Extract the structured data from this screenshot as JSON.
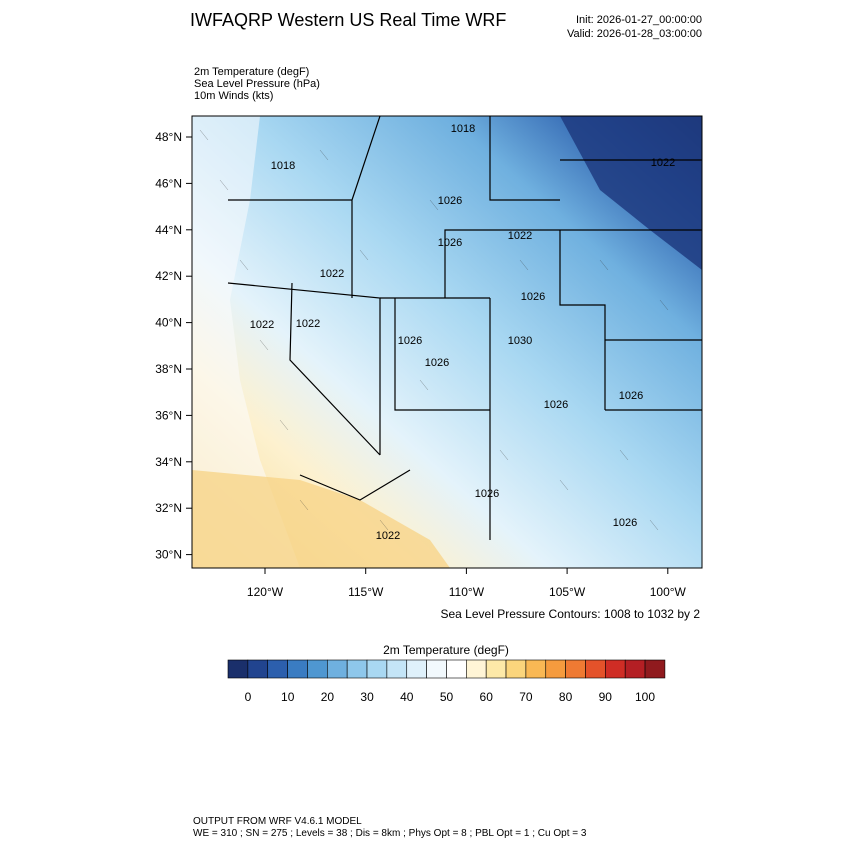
{
  "header": {
    "title": "IWFAQRP Western US Real Time WRF",
    "init": "Init: 2026-01-27_00:00:00",
    "valid": "Valid: 2026-01-28_03:00:00"
  },
  "fields": [
    "2m Temperature   (degF)",
    "Sea Level Pressure   (hPa)",
    "10m Winds   (kts)"
  ],
  "map": {
    "lat_labels": [
      "48°N",
      "46°N",
      "44°N",
      "42°N",
      "40°N",
      "38°N",
      "36°N",
      "34°N",
      "32°N",
      "30°N"
    ],
    "lon_labels": [
      "120°W",
      "115°W",
      "110°W",
      "105°W",
      "100°W"
    ],
    "contour_labels": [
      "1018",
      "1018",
      "1026",
      "1022",
      "1026",
      "1022",
      "1026",
      "1022",
      "1022",
      "1026",
      "1030",
      "1026",
      "1026",
      "1026",
      "1026",
      "1026",
      "1022",
      "1022"
    ],
    "contour_note": "Sea Level Pressure Contours: 1008 to 1032 by 2"
  },
  "colorbar": {
    "title": "2m Temperature  (degF)",
    "colors": [
      "#1a2f6b",
      "#21448f",
      "#2c5fad",
      "#3a7cc2",
      "#4f97d1",
      "#6fb0df",
      "#8ec7eb",
      "#a9d8f2",
      "#c4e5f7",
      "#dff1fb",
      "#f2f9fd",
      "#ffffff",
      "#fff5d6",
      "#fde9a8",
      "#fbd57c",
      "#f9b854",
      "#f59b3e",
      "#ef7a33",
      "#e4522a",
      "#cf2d25",
      "#b41f24",
      "#901a1e"
    ],
    "ticks": [
      0,
      10,
      20,
      30,
      40,
      50,
      60,
      70,
      80,
      90,
      100
    ]
  },
  "footer": [
    "OUTPUT FROM WRF V4.6.1 MODEL",
    "WE = 310 ; SN = 275 ; Levels = 38 ; Dis = 8km ; Phys Opt = 8 ; PBL Opt = 1 ; Cu Opt = 3"
  ]
}
